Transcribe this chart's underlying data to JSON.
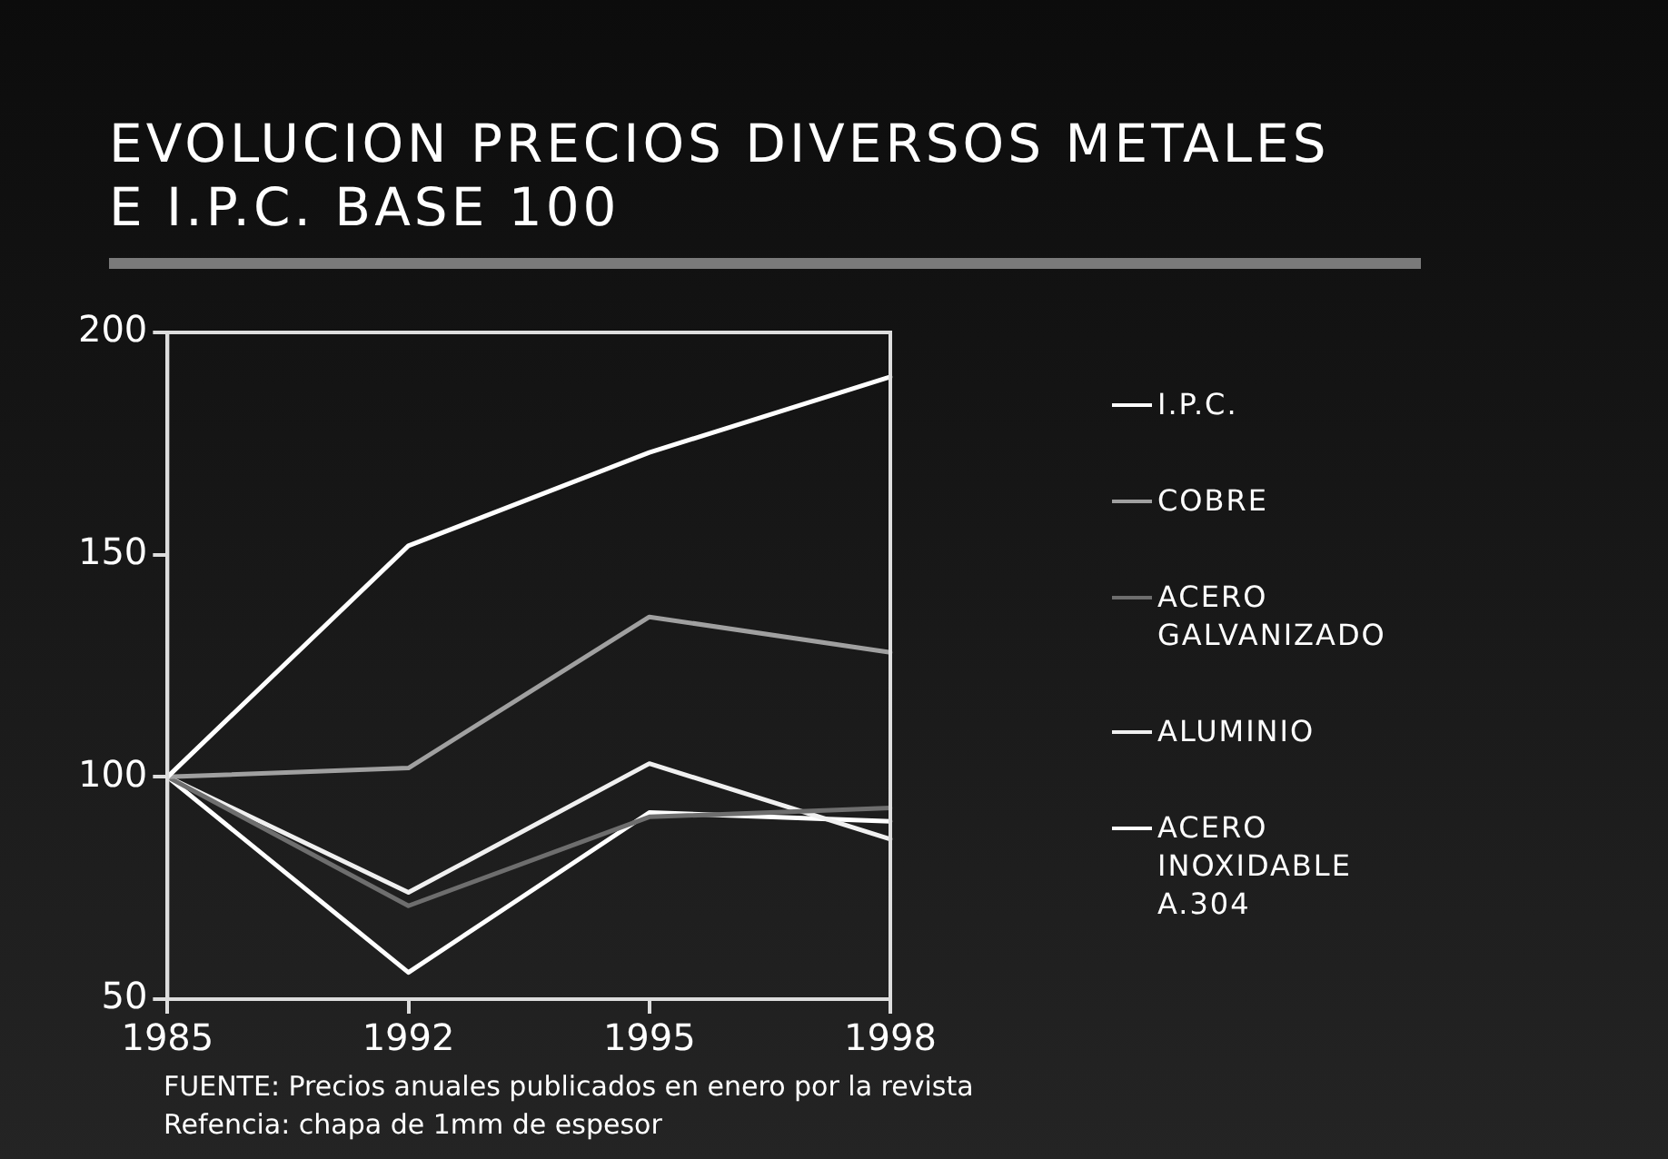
{
  "chart_data": {
    "type": "line",
    "title": "EVOLUCION PRECIOS DIVERSOS METALES\nE I.P.C.  BASE 100",
    "categories": [
      "1985",
      "1992",
      "1995",
      "1998"
    ],
    "series": [
      {
        "name": "I.P.C.",
        "color": "#ffffff",
        "values": [
          100,
          152,
          173,
          190
        ]
      },
      {
        "name": "COBRE",
        "color": "#a0a0a0",
        "values": [
          100,
          102,
          136,
          128
        ]
      },
      {
        "name": "ACERO GALVANIZADO",
        "color": "#6e6e6e",
        "values": [
          100,
          71,
          91,
          93
        ]
      },
      {
        "name": "ALUMINIO",
        "color": "#f0f0f0",
        "values": [
          100,
          74,
          103,
          86
        ]
      },
      {
        "name": "ACERO INOXIDABLE A.304",
        "color": "#ffffff",
        "values": [
          100,
          56,
          92,
          90
        ]
      }
    ],
    "ylim": [
      50,
      200
    ],
    "yticks": [
      50,
      100,
      150,
      200
    ],
    "grid": false,
    "legend": "right",
    "marker": "none",
    "line_style": "solid",
    "annotations": [
      "FUENTE: Precios anuales publicados en enero por la revista",
      "Refencia:  chapa de 1mm de espesor"
    ]
  }
}
